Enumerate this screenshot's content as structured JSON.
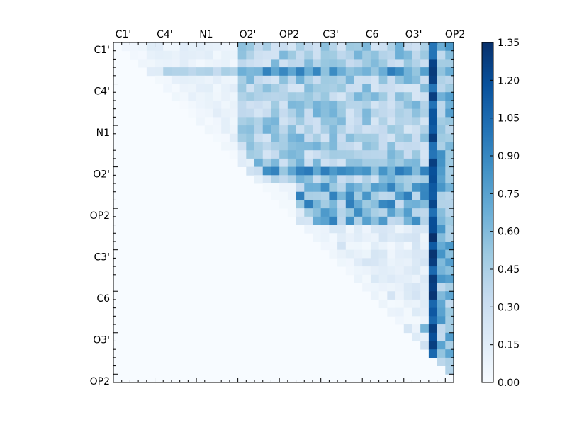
{
  "chart_data": {
    "type": "heatmap",
    "title": "",
    "xlabel": "",
    "ylabel": "",
    "matrix_size": 41,
    "triangle": "upper",
    "x_tick_labels": [
      "C1'",
      "C4'",
      "N1",
      "O2'",
      "OP2",
      "C3'",
      "C6",
      "O3'",
      "OP2"
    ],
    "y_tick_labels": [
      "C1'",
      "C4'",
      "N1",
      "O2'",
      "OP2",
      "C3'",
      "C6",
      "O3'",
      "OP2"
    ],
    "colorbar": {
      "min": 0.0,
      "max": 1.35,
      "ticks": [
        "0.00",
        "0.15",
        "0.30",
        "0.45",
        "0.60",
        "0.75",
        "0.90",
        "1.05",
        "1.20",
        "1.35"
      ],
      "colormap": "Blues"
    },
    "colormap_stops": [
      "#f7fbff",
      "#deebf7",
      "#c6dbef",
      "#9ecae1",
      "#6baed6",
      "#4292c6",
      "#2171b5",
      "#08519c",
      "#08306b"
    ],
    "grid": false
  }
}
